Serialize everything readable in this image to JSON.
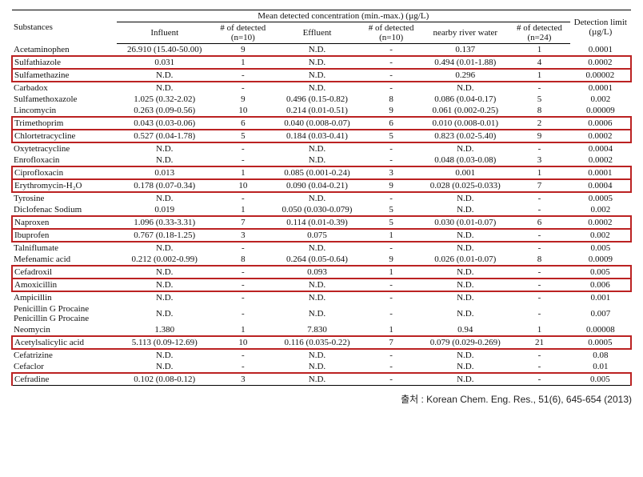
{
  "header": {
    "substances": "Substances",
    "mdc_title": "Mean detected concentration (min.-max.) (µg/L)",
    "influent": "Influent",
    "ndet10a": "# of detected (n=10)",
    "effluent": "Effluent",
    "ndet10b": "# of detected (n=10)",
    "river": "nearby river water",
    "ndet24": "# of detected (n=24)",
    "detlim": "Detection limit (µg/L)"
  },
  "rows": [
    {
      "s": "Acetaminophen",
      "i": "26.910 (15.40-50.00)",
      "n1": "9",
      "e": "N.D.",
      "n2": "-",
      "r": "0.137",
      "n3": "1",
      "d": "0.0001",
      "hl": false
    },
    {
      "s": "Sulfathiazole",
      "i": "0.031",
      "n1": "1",
      "e": "N.D.",
      "n2": "-",
      "r": "0.494 (0.01-1.88)",
      "n3": "4",
      "d": "0.0002",
      "hl": true
    },
    {
      "s": "Sulfamethazine",
      "i": "N.D.",
      "n1": "-",
      "e": "N.D.",
      "n2": "-",
      "r": "0.296",
      "n3": "1",
      "d": "0.00002",
      "hl": true
    },
    {
      "s": "Carbadox",
      "i": "N.D.",
      "n1": "-",
      "e": "N.D.",
      "n2": "-",
      "r": "N.D.",
      "n3": "-",
      "d": "0.0001",
      "hl": false
    },
    {
      "s": "Sulfamethoxazole",
      "i": "1.025 (0.32-2.02)",
      "n1": "9",
      "e": "0.496 (0.15-0.82)",
      "n2": "8",
      "r": "0.086 (0.04-0.17)",
      "n3": "5",
      "d": "0.002",
      "hl": false
    },
    {
      "s": "Lincomycin",
      "i": "0.263 (0.09-0.56)",
      "n1": "10",
      "e": "0.214 (0.01-0.51)",
      "n2": "9",
      "r": "0.061 (0.002-0.25)",
      "n3": "8",
      "d": "0.00009",
      "hl": false
    },
    {
      "s": "Trimethoprim",
      "i": "0.043 (0.03-0.06)",
      "n1": "6",
      "e": "0.040 (0.008-0.07)",
      "n2": "6",
      "r": "0.010 (0.008-0.01)",
      "n3": "2",
      "d": "0.0006",
      "hl": true
    },
    {
      "s": "Chlortetracycline",
      "i": "0.527 (0.04-1.78)",
      "n1": "5",
      "e": "0.184 (0.03-0.41)",
      "n2": "5",
      "r": "0.823 (0.02-5.40)",
      "n3": "9",
      "d": "0.0002",
      "hl": true
    },
    {
      "s": "Oxytetracycline",
      "i": "N.D.",
      "n1": "-",
      "e": "N.D.",
      "n2": "-",
      "r": "N.D.",
      "n3": "-",
      "d": "0.0004",
      "hl": false
    },
    {
      "s": "Enrofloxacin",
      "i": "N.D.",
      "n1": "-",
      "e": "N.D.",
      "n2": "-",
      "r": "0.048 (0.03-0.08)",
      "n3": "3",
      "d": "0.0002",
      "hl": false
    },
    {
      "s": "Ciprofloxacin",
      "i": "0.013",
      "n1": "1",
      "e": "0.085 (0.001-0.24)",
      "n2": "3",
      "r": "0.001",
      "n3": "1",
      "d": "0.0001",
      "hl": true
    },
    {
      "s": "Erythromycin-H₂O",
      "i": "0.178 (0.07-0.34)",
      "n1": "10",
      "e": "0.090 (0.04-0.21)",
      "n2": "9",
      "r": "0.028 (0.025-0.033)",
      "n3": "7",
      "d": "0.0004",
      "hl": true
    },
    {
      "s": "Tyrosine",
      "i": "N.D.",
      "n1": "-",
      "e": "N.D.",
      "n2": "-",
      "r": "N.D.",
      "n3": "-",
      "d": "0.0005",
      "hl": false
    },
    {
      "s": "Diclofenac Sodium",
      "i": "0.019",
      "n1": "1",
      "e": "0.050 (0.030-0.079)",
      "n2": "5",
      "r": "N.D.",
      "n3": "-",
      "d": "0.002",
      "hl": false
    },
    {
      "s": "Naproxen",
      "i": "1.096 (0.33-3.31)",
      "n1": "7",
      "e": "0.114 (0.01-0.39)",
      "n2": "5",
      "r": "0.030 (0.01-0.07)",
      "n3": "6",
      "d": "0.0002",
      "hl": true
    },
    {
      "s": "Ibuprofen",
      "i": "0.767 (0.18-1.25)",
      "n1": "3",
      "e": "0.075",
      "n2": "1",
      "r": "N.D.",
      "n3": "-",
      "d": "0.002",
      "hl": true
    },
    {
      "s": "Talniflumate",
      "i": "N.D.",
      "n1": "-",
      "e": "N.D.",
      "n2": "-",
      "r": "N.D.",
      "n3": "-",
      "d": "0.005",
      "hl": false
    },
    {
      "s": "Mefenamic acid",
      "i": "0.212 (0.002-0.99)",
      "n1": "8",
      "e": "0.264 (0.05-0.64)",
      "n2": "9",
      "r": "0.026 (0.01-0.07)",
      "n3": "8",
      "d": "0.0009",
      "hl": false
    },
    {
      "s": "Cefadroxil",
      "i": "N.D.",
      "n1": "-",
      "e": "0.093",
      "n2": "1",
      "r": "N.D.",
      "n3": "-",
      "d": "0.005",
      "hl": true
    },
    {
      "s": "Amoxicillin",
      "i": "N.D.",
      "n1": "-",
      "e": "N.D.",
      "n2": "-",
      "r": "N.D.",
      "n3": "-",
      "d": "0.006",
      "hl": true
    },
    {
      "s": "Ampicillin",
      "i": "N.D.",
      "n1": "-",
      "e": "N.D.",
      "n2": "-",
      "r": "N.D.",
      "n3": "-",
      "d": "0.001",
      "hl": false
    },
    {
      "s": "Penicillin G Procaine  Penicillin G Procaine",
      "i": "N.D.",
      "n1": "-",
      "e": "N.D.",
      "n2": "-",
      "r": "N.D.",
      "n3": "-",
      "d": "0.007",
      "hl": false,
      "dbl": true
    },
    {
      "s": "Neomycin",
      "i": "1.380",
      "n1": "1",
      "e": "7.830",
      "n2": "1",
      "r": "0.94",
      "n3": "1",
      "d": "0.00008",
      "hl": false
    },
    {
      "s": "Acetylsalicylic acid",
      "i": "5.113 (0.09-12.69)",
      "n1": "10",
      "e": "0.116 (0.035-0.22)",
      "n2": "7",
      "r": "0.079 (0.029-0.269)",
      "n3": "21",
      "d": "0.0005",
      "hl": true
    },
    {
      "s": "Cefatrizine",
      "i": "N.D.",
      "n1": "-",
      "e": "N.D.",
      "n2": "-",
      "r": "N.D.",
      "n3": "-",
      "d": "0.08",
      "hl": false
    },
    {
      "s": "Cefaclor",
      "i": "N.D.",
      "n1": "-",
      "e": "N.D.",
      "n2": "-",
      "r": "N.D.",
      "n3": "-",
      "d": "0.01",
      "hl": false
    },
    {
      "s": "Cefradine",
      "i": "0.102 (0.08-0.12)",
      "n1": "3",
      "e": "N.D.",
      "n2": "-",
      "r": "N.D.",
      "n3": "-",
      "d": "0.005",
      "hl": true
    }
  ],
  "footer": "출처 : Korean Chem. Eng. Res., 51(6), 645-654 (2013)"
}
